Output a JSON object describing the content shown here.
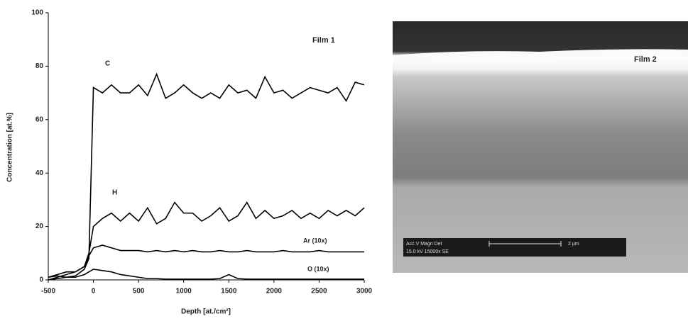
{
  "chart_data": {
    "type": "line",
    "x_label": "Depth [at./cm²]",
    "y_label": "Concentration [at.%]",
    "annotations": [
      "Film 1",
      "C",
      "H",
      "Ar (10x)",
      "O (10x)"
    ],
    "x": [
      -500,
      -400,
      -300,
      -200,
      -100,
      -50,
      0,
      100,
      200,
      300,
      400,
      500,
      600,
      700,
      800,
      900,
      1000,
      1100,
      1200,
      1300,
      1400,
      1500,
      1600,
      1700,
      1800,
      1900,
      2000,
      2100,
      2200,
      2300,
      2400,
      2500,
      2600,
      2700,
      2800,
      2900,
      3000
    ],
    "series": [
      {
        "name": "C",
        "color": "#000000",
        "values": [
          0,
          0.5,
          1,
          1.5,
          4,
          8,
          72,
          70,
          73,
          70,
          70,
          73,
          69,
          77,
          68,
          70,
          73,
          70,
          68,
          70,
          68,
          73,
          70,
          71,
          68,
          76,
          70,
          71,
          68,
          70,
          72,
          71,
          70,
          72,
          67,
          74,
          73
        ]
      },
      {
        "name": "H",
        "color": "#000000",
        "values": [
          0,
          1,
          2,
          3,
          5,
          10,
          20,
          23,
          25,
          22,
          25,
          22,
          27,
          21,
          23,
          29,
          25,
          25,
          22,
          24,
          27,
          22,
          24,
          29,
          23,
          26,
          23,
          24,
          26,
          23,
          25,
          23,
          26,
          24,
          26,
          24,
          27
        ]
      },
      {
        "name": "Ar (10x)",
        "color": "#000000",
        "values": [
          1,
          2,
          3,
          3,
          5,
          9,
          12,
          13,
          12,
          11,
          11,
          11,
          10.5,
          11,
          10.5,
          11,
          10.5,
          11,
          10.5,
          10.5,
          11,
          10.5,
          10.5,
          11,
          10.5,
          10.5,
          10.5,
          11,
          10.5,
          10.5,
          10.5,
          11,
          10.5,
          10.5,
          10.5,
          10.5,
          10.5
        ]
      },
      {
        "name": "O (10x)",
        "color": "#000000",
        "values": [
          1,
          1.5,
          1,
          1,
          2,
          3,
          4,
          3.5,
          3,
          2,
          1.5,
          1,
          0.5,
          0.5,
          0.3,
          0.3,
          0.3,
          0.3,
          0.3,
          0.3,
          0.5,
          2,
          0.5,
          0.3,
          0.3,
          0.3,
          0.3,
          0.3,
          0.3,
          0.3,
          0.3,
          0.3,
          0.3,
          0.3,
          0.3,
          0.3,
          0.3
        ]
      }
    ],
    "xlim": [
      -500,
      3000
    ],
    "xticks": [
      -500,
      0,
      500,
      1000,
      1500,
      2000,
      2500,
      3000
    ],
    "ylim": [
      0,
      100
    ],
    "yticks": [
      0,
      20,
      40,
      60,
      80,
      100
    ],
    "grid": false
  },
  "image_panel": {
    "label": "Film 2",
    "info_header": "Acc.V   Magn    Det",
    "info_values": "15.0 kV 15000x   SE",
    "scale_text": "2 µm"
  }
}
